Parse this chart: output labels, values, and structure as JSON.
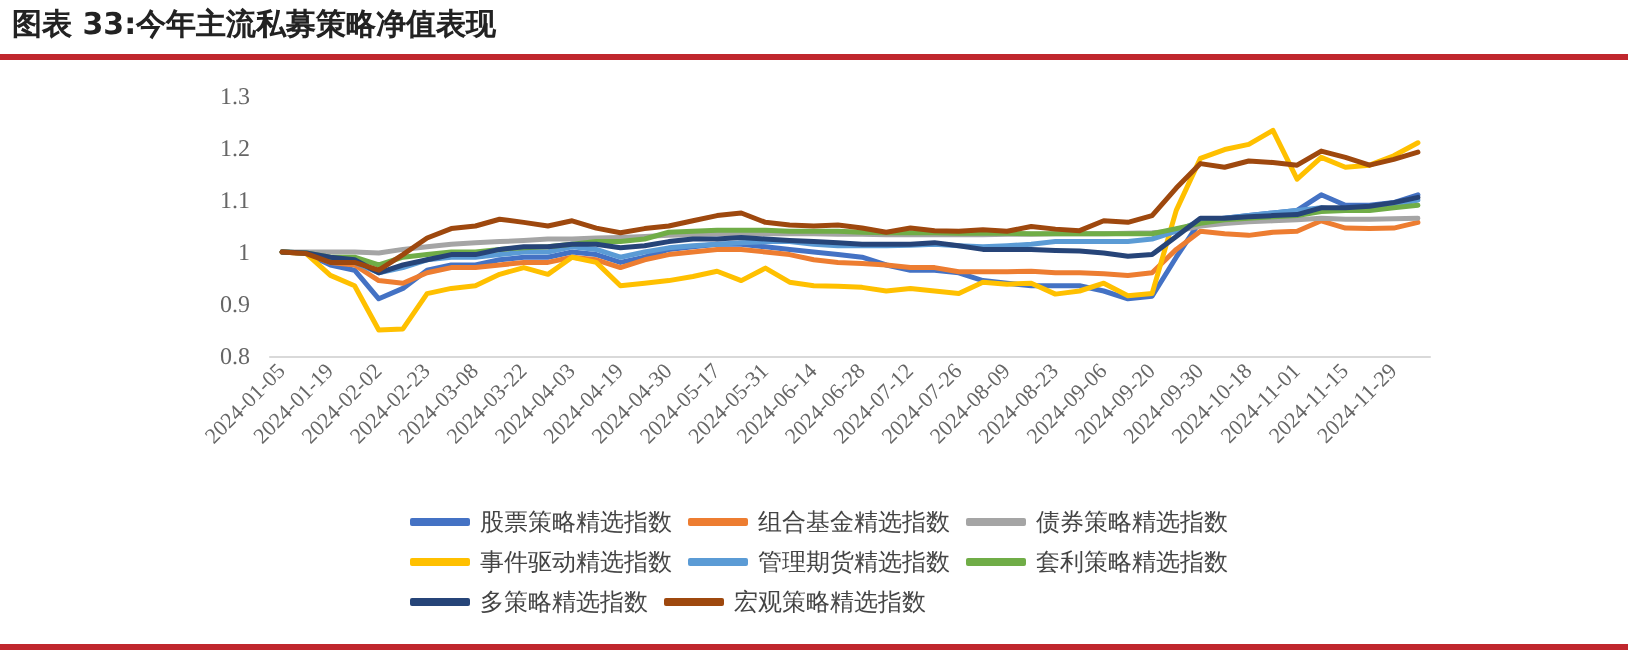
{
  "chart_data": {
    "type": "line",
    "title": "图表 33:今年主流私募策略净值表现",
    "categories": [
      "2024-01-05",
      null,
      "2024-01-19",
      null,
      "2024-02-02",
      null,
      "2024-02-23",
      null,
      "2024-03-08",
      null,
      "2024-03-22",
      null,
      "2024-04-03",
      null,
      "2024-04-19",
      null,
      "2024-04-30",
      null,
      "2024-05-17",
      null,
      "2024-05-31",
      null,
      "2024-06-14",
      null,
      "2024-06-28",
      null,
      "2024-07-12",
      null,
      "2024-07-26",
      null,
      "2024-08-09",
      null,
      "2024-08-23",
      null,
      "2024-09-06",
      null,
      "2024-09-20",
      null,
      "2024-09-30",
      null,
      "2024-10-18",
      null,
      "2024-11-01",
      null,
      "2024-11-15",
      null,
      "2024-11-29",
      null
    ],
    "series": [
      {
        "name": "股票策略精选指数",
        "color": "#4472c4",
        "values": [
          1.0,
          0.997,
          0.975,
          0.965,
          0.91,
          0.93,
          0.965,
          0.975,
          0.975,
          0.985,
          0.99,
          0.99,
          1.0,
          0.995,
          0.98,
          0.99,
          1.005,
          1.01,
          1.015,
          1.015,
          1.01,
          1.005,
          1.0,
          0.995,
          0.99,
          0.975,
          0.965,
          0.965,
          0.96,
          0.945,
          0.94,
          0.935,
          0.935,
          0.935,
          0.925,
          0.91,
          0.915,
          0.99,
          1.06,
          1.065,
          1.07,
          1.075,
          1.08,
          1.11,
          1.09,
          1.09,
          1.095,
          1.11
        ]
      },
      {
        "name": "组合基金精选指数",
        "color": "#ed7d31",
        "values": [
          1.0,
          0.997,
          0.98,
          0.975,
          0.945,
          0.94,
          0.96,
          0.97,
          0.97,
          0.975,
          0.98,
          0.98,
          0.99,
          0.985,
          0.97,
          0.985,
          0.995,
          1.0,
          1.005,
          1.005,
          1.0,
          0.995,
          0.985,
          0.98,
          0.978,
          0.975,
          0.97,
          0.97,
          0.962,
          0.962,
          0.962,
          0.963,
          0.96,
          0.96,
          0.958,
          0.955,
          0.96,
          1.005,
          1.04,
          1.035,
          1.032,
          1.038,
          1.04,
          1.06,
          1.046,
          1.045,
          1.046,
          1.057
        ]
      },
      {
        "name": "债券策略精选指数",
        "color": "#a5a5a5",
        "values": [
          1.0,
          1.0,
          1.0,
          1.0,
          0.998,
          1.005,
          1.01,
          1.015,
          1.018,
          1.02,
          1.022,
          1.025,
          1.025,
          1.027,
          1.028,
          1.03,
          1.032,
          1.033,
          1.035,
          1.035,
          1.035,
          1.035,
          1.035,
          1.034,
          1.034,
          1.033,
          1.033,
          1.033,
          1.033,
          1.033,
          1.034,
          1.034,
          1.035,
          1.035,
          1.035,
          1.036,
          1.037,
          1.04,
          1.05,
          1.055,
          1.058,
          1.06,
          1.062,
          1.065,
          1.063,
          1.063,
          1.064,
          1.065
        ]
      },
      {
        "name": "事件驱动精选指数",
        "color": "#ffc000",
        "values": [
          1.0,
          0.997,
          0.955,
          0.935,
          0.85,
          0.852,
          0.92,
          0.93,
          0.935,
          0.957,
          0.97,
          0.957,
          0.99,
          0.98,
          0.935,
          0.94,
          0.945,
          0.953,
          0.963,
          0.945,
          0.969,
          0.942,
          0.935,
          0.934,
          0.932,
          0.925,
          0.93,
          0.925,
          0.92,
          0.942,
          0.938,
          0.94,
          0.919,
          0.925,
          0.94,
          0.916,
          0.92,
          1.08,
          1.18,
          1.197,
          1.207,
          1.234,
          1.14,
          1.182,
          1.163,
          1.167,
          1.185,
          1.21
        ]
      },
      {
        "name": "管理期货精选指数",
        "color": "#5b9bd5",
        "values": [
          1.0,
          0.998,
          0.985,
          0.98,
          0.96,
          0.97,
          0.985,
          0.99,
          0.99,
          0.995,
          1.0,
          1.0,
          1.01,
          1.005,
          0.99,
          1.0,
          1.008,
          1.012,
          1.015,
          1.018,
          1.02,
          1.02,
          1.015,
          1.012,
          1.012,
          1.012,
          1.013,
          1.015,
          1.012,
          1.01,
          1.012,
          1.015,
          1.02,
          1.02,
          1.02,
          1.02,
          1.025,
          1.04,
          1.06,
          1.065,
          1.07,
          1.075,
          1.08,
          1.085,
          1.08,
          1.085,
          1.09,
          1.1
        ]
      },
      {
        "name": "套利策略精选指数",
        "color": "#70ad47",
        "values": [
          1.0,
          0.998,
          0.99,
          0.99,
          0.975,
          0.99,
          0.995,
          1.0,
          1.0,
          1.005,
          1.008,
          1.01,
          1.015,
          1.02,
          1.02,
          1.025,
          1.038,
          1.04,
          1.042,
          1.042,
          1.042,
          1.04,
          1.04,
          1.04,
          1.038,
          1.037,
          1.037,
          1.037,
          1.036,
          1.036,
          1.036,
          1.035,
          1.035,
          1.035,
          1.035,
          1.035,
          1.035,
          1.045,
          1.055,
          1.062,
          1.065,
          1.068,
          1.07,
          1.078,
          1.08,
          1.08,
          1.085,
          1.09
        ]
      },
      {
        "name": "多策略精选指数",
        "color": "#264478",
        "values": [
          1.0,
          0.998,
          0.99,
          0.985,
          0.96,
          0.975,
          0.985,
          0.995,
          0.995,
          1.005,
          1.01,
          1.01,
          1.015,
          1.015,
          1.008,
          1.012,
          1.02,
          1.025,
          1.025,
          1.028,
          1.025,
          1.022,
          1.02,
          1.018,
          1.015,
          1.015,
          1.015,
          1.018,
          1.012,
          1.005,
          1.005,
          1.005,
          1.003,
          1.002,
          0.998,
          0.992,
          0.995,
          1.03,
          1.065,
          1.065,
          1.068,
          1.07,
          1.072,
          1.085,
          1.085,
          1.088,
          1.095,
          1.105
        ]
      },
      {
        "name": "宏观策略精选指数",
        "color": "#9e480e",
        "values": [
          1.0,
          0.997,
          0.98,
          0.98,
          0.965,
          0.995,
          1.027,
          1.045,
          1.05,
          1.063,
          1.057,
          1.05,
          1.06,
          1.046,
          1.037,
          1.045,
          1.05,
          1.06,
          1.07,
          1.075,
          1.057,
          1.052,
          1.05,
          1.052,
          1.046,
          1.038,
          1.046,
          1.041,
          1.04,
          1.043,
          1.04,
          1.049,
          1.044,
          1.041,
          1.06,
          1.057,
          1.07,
          1.123,
          1.17,
          1.163,
          1.175,
          1.172,
          1.167,
          1.194,
          1.182,
          1.167,
          1.178,
          1.192
        ]
      }
    ],
    "ylim": [
      0.8,
      1.3
    ],
    "yticks": [
      0.8,
      0.9,
      1,
      1.1,
      1.2,
      1.3
    ],
    "grid": false,
    "legend": "bottom",
    "marker": "none",
    "line_style": "solid"
  }
}
